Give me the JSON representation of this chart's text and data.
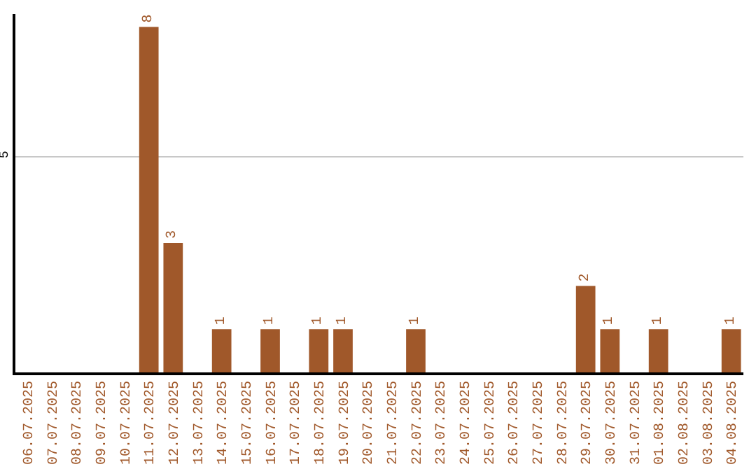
{
  "chart_data": {
    "type": "bar",
    "categories": [
      "06.07.2025",
      "07.07.2025",
      "08.07.2025",
      "09.07.2025",
      "10.07.2025",
      "11.07.2025",
      "12.07.2025",
      "13.07.2025",
      "14.07.2025",
      "15.07.2025",
      "16.07.2025",
      "17.07.2025",
      "18.07.2025",
      "19.07.2025",
      "20.07.2025",
      "21.07.2025",
      "22.07.2025",
      "23.07.2025",
      "24.07.2025",
      "25.07.2025",
      "26.07.2025",
      "27.07.2025",
      "28.07.2025",
      "29.07.2025",
      "30.07.2025",
      "31.07.2025",
      "01.08.2025",
      "02.08.2025",
      "03.08.2025",
      "04.08.2025"
    ],
    "values": [
      0,
      0,
      0,
      0,
      0,
      8,
      3,
      0,
      1,
      0,
      1,
      0,
      1,
      1,
      0,
      0,
      1,
      0,
      0,
      0,
      0,
      0,
      0,
      2,
      1,
      0,
      1,
      0,
      0,
      1
    ],
    "value_labels": [
      null,
      null,
      null,
      null,
      null,
      "8",
      "3",
      null,
      "1",
      null,
      "1",
      null,
      "1",
      "1",
      null,
      null,
      "1",
      null,
      null,
      null,
      null,
      null,
      null,
      "2",
      "1",
      null,
      "1",
      null,
      null,
      "1"
    ],
    "color": "#a0582a",
    "ylim": [
      0,
      8.3
    ],
    "yticks": [
      5
    ],
    "grid": "y"
  }
}
